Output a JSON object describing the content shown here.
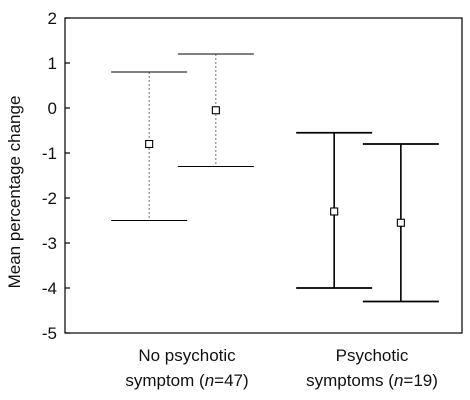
{
  "chart_data": {
    "type": "errorbar",
    "title": "",
    "ylabel": "Mean percentage change",
    "ylim": [
      -5,
      2
    ],
    "yticks": [
      "2",
      "1",
      "0",
      "-1",
      "-2",
      "-3",
      "-4",
      "-5"
    ],
    "categories": [
      {
        "line1": "No psychotic",
        "line2_prefix": "symptom (",
        "n_letter": "n",
        "line2_suffix": "=47)"
      },
      {
        "line1": "Psychotic",
        "line2_prefix": "symptoms (",
        "n_letter": "n",
        "line2_suffix": "=19)"
      }
    ],
    "points": [
      {
        "group": 0,
        "mean": -0.8,
        "upper": 0.8,
        "lower": -2.5,
        "style": "light"
      },
      {
        "group": 0,
        "mean": -0.05,
        "upper": 1.2,
        "lower": -1.3,
        "style": "light"
      },
      {
        "group": 1,
        "mean": -2.3,
        "upper": -0.55,
        "lower": -4.0,
        "style": "bold"
      },
      {
        "group": 1,
        "mean": -2.55,
        "upper": -0.8,
        "lower": -4.3,
        "style": "bold"
      }
    ],
    "grid": false,
    "legend": "none"
  }
}
